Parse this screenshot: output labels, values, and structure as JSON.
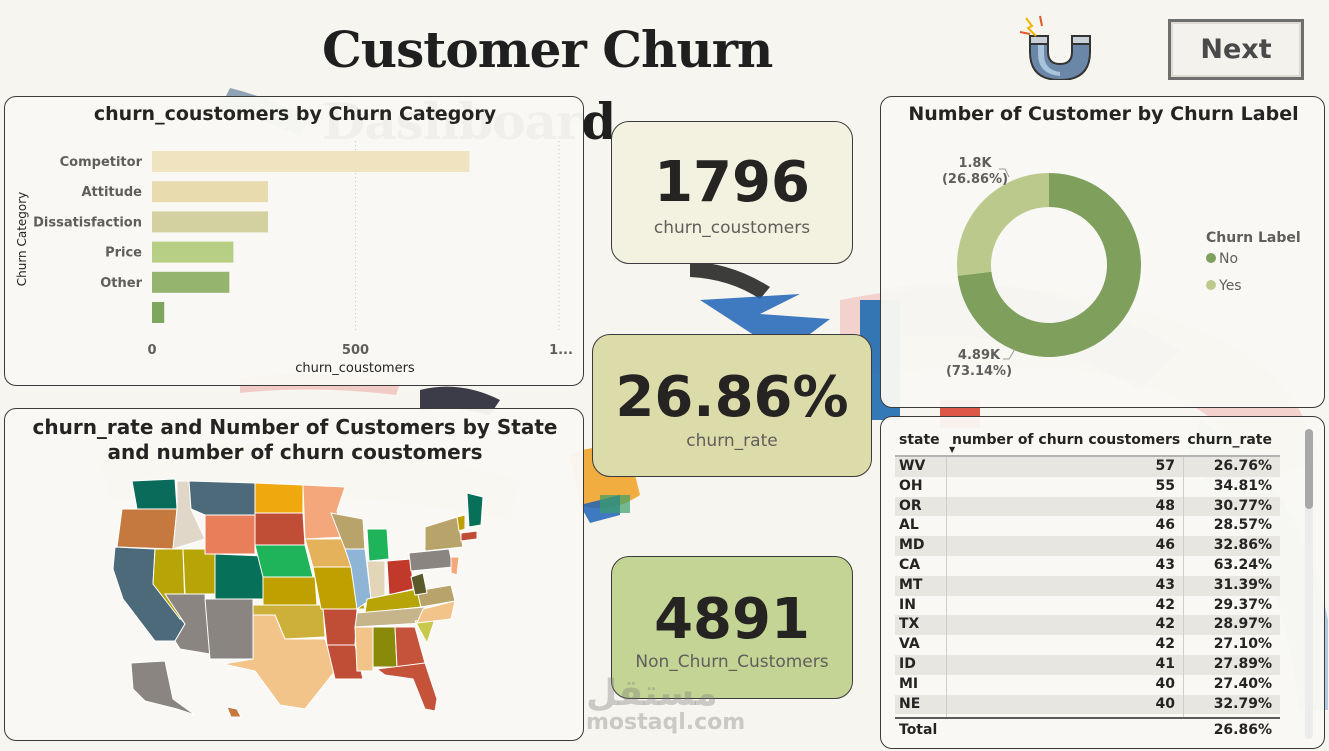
{
  "header": {
    "title": "Customer Churn Dashboard",
    "next_label": "Next"
  },
  "bar_chart": {
    "title": "churn_coustomers by Churn Category",
    "ylabel": "Churn Category",
    "xlabel": "churn_coustomers",
    "ticks": [
      "0",
      "500",
      "1..."
    ],
    "categories": [
      "Competitor",
      "Attitude",
      "Dissatisfaction",
      "Price",
      "Other",
      ""
    ],
    "values": [
      780,
      285,
      285,
      200,
      190,
      30
    ],
    "colors": [
      "#efe4bf",
      "#e8dbae",
      "#d4d1a0",
      "#b7cf85",
      "#95b56f",
      "#7fa65e"
    ],
    "xlim": [
      0,
      1000
    ]
  },
  "kpis": {
    "churn_customers": {
      "value": "1796",
      "label": "churn_coustomers"
    },
    "churn_rate": {
      "value": "26.86%",
      "label": "churn_rate"
    },
    "non_churn": {
      "value": "4891",
      "label": "Non_Churn_Customers"
    }
  },
  "donut": {
    "title": "Number of Customer by Churn Label",
    "legend_title": "Churn Label",
    "labels": [
      "No",
      "Yes"
    ],
    "values": [
      4891,
      1796
    ],
    "colors": [
      "#7f9f5d",
      "#bcc98d"
    ],
    "yes_label_value": "1.8K",
    "yes_label_pct": "(26.86%)",
    "no_label_value": "4.89K",
    "no_label_pct": "(73.14%)"
  },
  "map": {
    "title_line1": "churn_rate and Number of Customers by State",
    "title_line2": "and number of churn coustomers"
  },
  "table": {
    "headers": [
      "state",
      "number of churn coustomers",
      "churn_rate"
    ],
    "rows": [
      [
        "WV",
        "57",
        "26.76%"
      ],
      [
        "OH",
        "55",
        "34.81%"
      ],
      [
        "OR",
        "48",
        "30.77%"
      ],
      [
        "AL",
        "46",
        "28.57%"
      ],
      [
        "MD",
        "46",
        "32.86%"
      ],
      [
        "CA",
        "43",
        "63.24%"
      ],
      [
        "MT",
        "43",
        "31.39%"
      ],
      [
        "IN",
        "42",
        "29.37%"
      ],
      [
        "TX",
        "42",
        "28.97%"
      ],
      [
        "VA",
        "42",
        "27.10%"
      ],
      [
        "ID",
        "41",
        "27.89%"
      ],
      [
        "MI",
        "40",
        "27.40%"
      ],
      [
        "NE",
        "40",
        "32.79%"
      ]
    ],
    "total_label": "Total",
    "total_rate": "26.86%"
  },
  "watermark": {
    "logo": "مستقل",
    "url": "mostaql.com"
  },
  "colors": {
    "background": "#f7f5ef",
    "accent_green": "#7f9f5d",
    "accent_light": "#bcc98d"
  }
}
